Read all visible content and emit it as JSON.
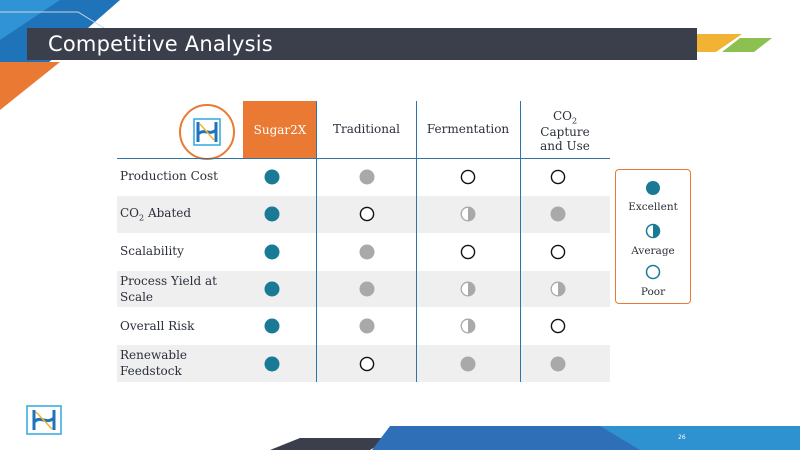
{
  "slide": {
    "title": "Competitive Analysis",
    "page_number": "26"
  },
  "table": {
    "columns": [
      {
        "key": "sugar2x",
        "label": "Sugar2X"
      },
      {
        "key": "traditional",
        "label": "Traditional"
      },
      {
        "key": "fermentation",
        "label": "Fermentation"
      },
      {
        "key": "co2",
        "label_line1": "CO",
        "label_sub": "2",
        "label_line2": "Capture",
        "label_line3": "and Use"
      }
    ],
    "rows": [
      {
        "label": "Production Cost",
        "ratings": [
          "excellent",
          "average-full",
          "poor",
          "poor"
        ]
      },
      {
        "label_prefix": "CO",
        "label_sub": "2",
        "label_suffix": " Abated",
        "ratings": [
          "excellent",
          "poor",
          "average",
          "average-full"
        ]
      },
      {
        "label": "Scalability",
        "ratings": [
          "excellent",
          "average-full",
          "poor",
          "poor"
        ]
      },
      {
        "label_line1": "Process Yield at",
        "label_line2": "Scale",
        "ratings": [
          "excellent",
          "average-full",
          "average",
          "average"
        ]
      },
      {
        "label": "Overall Risk",
        "ratings": [
          "excellent",
          "average-full",
          "average",
          "poor"
        ]
      },
      {
        "label_line1": "Renewable",
        "label_line2": "Feedstock",
        "ratings": [
          "excellent",
          "poor",
          "average-full",
          "average-full"
        ]
      }
    ]
  },
  "legend": {
    "excellent": "Excellent",
    "average": "Average",
    "poor": "Poor"
  },
  "colors": {
    "teal": "#1a7a96",
    "grey_dot": "#a9a9a9",
    "orange": "#ea7a33",
    "title_bar": "#3a3f4b",
    "line_blue": "#2e74a8"
  }
}
